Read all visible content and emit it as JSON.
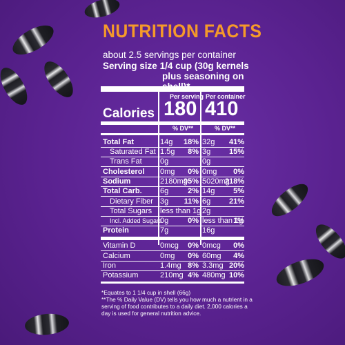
{
  "title": "NUTRITION FACTS",
  "servings": "about 2.5 servings per container",
  "serving_size_label": "Serving size",
  "serving_size_value_1": "1/4 cup (30g kernels",
  "serving_size_value_2": "plus seasoning on shell)*",
  "col_per_serving": "Per serving",
  "col_per_container": "Per container",
  "calories_label": "Calories",
  "calories_serving": "180",
  "calories_container": "410",
  "dv_header": "% DV**",
  "rows": [
    {
      "name": "Total Fat",
      "bold": true,
      "s_amt": "14g",
      "s_dv": "18%",
      "c_amt": "32g",
      "c_dv": "41%"
    },
    {
      "name": "Saturated Fat",
      "bold": false,
      "s_amt": "1.5g",
      "s_dv": "8%",
      "c_amt": "3g",
      "c_dv": "15%"
    },
    {
      "name": "Trans Fat",
      "bold": false,
      "s_amt": "0g",
      "s_dv": "",
      "c_amt": "0g",
      "c_dv": ""
    },
    {
      "name": "Cholesterol",
      "bold": true,
      "s_amt": "0mg",
      "s_dv": "0%",
      "c_amt": "0mg",
      "c_dv": "0%"
    },
    {
      "name": "Sodium",
      "bold": true,
      "s_amt": "2180mg",
      "s_dv": "95%",
      "c_amt": "5020mg",
      "c_dv": "218%"
    },
    {
      "name": "Total Carb.",
      "bold": true,
      "s_amt": "6g",
      "s_dv": "2%",
      "c_amt": "14g",
      "c_dv": "5%"
    },
    {
      "name": "Dietary Fiber",
      "bold": false,
      "s_amt": "3g",
      "s_dv": "11%",
      "c_amt": "6g",
      "c_dv": "21%"
    },
    {
      "name": "Total Sugars",
      "bold": false,
      "s_amt": "less than 1g",
      "s_dv": "",
      "c_amt": "2g",
      "c_dv": ""
    },
    {
      "name": "Incl. Added Sugars",
      "bold": false,
      "s_amt": "0g",
      "s_dv": "0%",
      "c_amt": "less than 1g",
      "c_dv": "1%"
    },
    {
      "name": "Protein",
      "bold": true,
      "s_amt": "7g",
      "s_dv": "",
      "c_amt": "16g",
      "c_dv": ""
    },
    {
      "name": "Vitamin D",
      "bold": false,
      "s_amt": "0mcg",
      "s_dv": "0%",
      "c_amt": "0mcg",
      "c_dv": "0%"
    },
    {
      "name": "Calcium",
      "bold": false,
      "s_amt": "0mg",
      "s_dv": "0%",
      "c_amt": "60mg",
      "c_dv": "4%"
    },
    {
      "name": "Iron",
      "bold": false,
      "s_amt": "1.4mg",
      "s_dv": "8%",
      "c_amt": "3.3mg",
      "c_dv": "20%"
    },
    {
      "name": "Potassium",
      "bold": false,
      "s_amt": "210mg",
      "s_dv": "4%",
      "c_amt": "480mg",
      "c_dv": "10%"
    }
  ],
  "footnote_1": "*Equates to 1 1/4 cup in shell (66g)",
  "footnote_2": "**The % Daily Value (DV) tells you how much a nutrient in a serving of food contributes to a daily diet. 2,000 calories a day is used for general nutrition advice.",
  "colors": {
    "background": "#5a2290",
    "title": "#f59a2a",
    "text": "#ffffff"
  }
}
